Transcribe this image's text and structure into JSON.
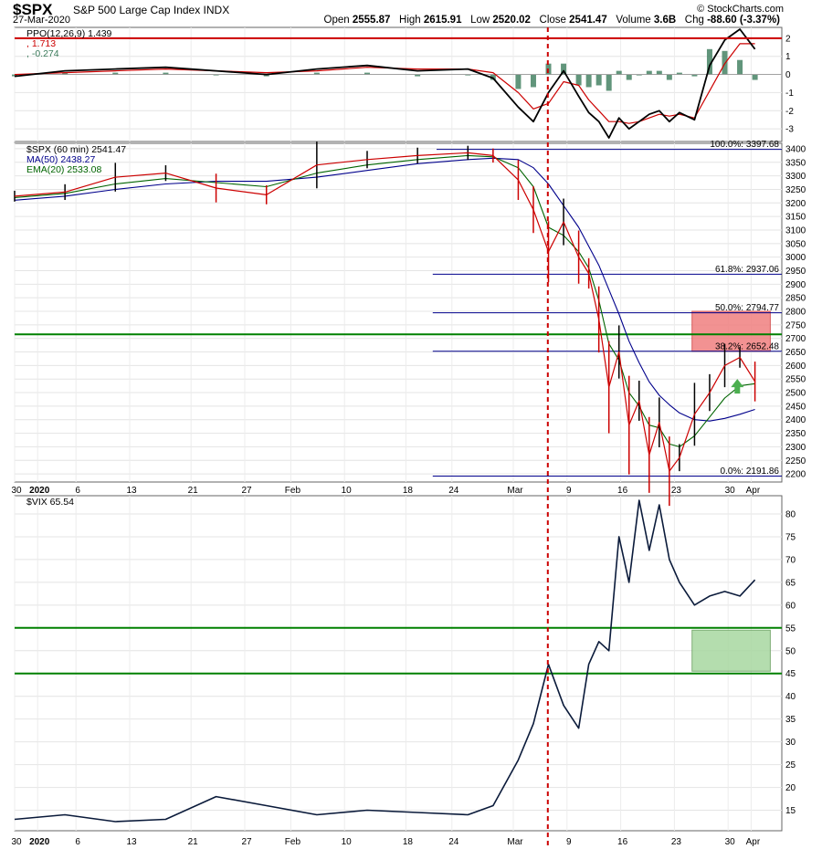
{
  "header": {
    "symbol": "$SPX",
    "description": "S&P 500 Large Cap Index  INDX",
    "date": "27-Mar-2020",
    "brand": "© StockCharts.com",
    "open_label": "Open",
    "open": "2555.87",
    "high_label": "High",
    "high": "2615.91",
    "low_label": "Low",
    "low": "2520.02",
    "close_label": "Close",
    "close": "2541.47",
    "volume_label": "Volume",
    "volume": "3.6B",
    "chg_label": "Chg",
    "chg": "-88.60 (-3.37%)"
  },
  "colors": {
    "price_up": "#000000",
    "price_down": "#cc0000",
    "ma50": "#00008b",
    "ema20": "#006400",
    "ppo": "#000000",
    "signal": "#cc0000",
    "histogram": "#3a7a5a",
    "vix": "#0a1a3a",
    "fib_line": "#00008b",
    "support_green": "#008000",
    "event_line": "#cc0000",
    "resistance_zone": "#f08080",
    "support_zone": "#a8d8a0"
  },
  "chart_data": [
    {
      "type": "line",
      "panel": "PPO",
      "legend": [
        {
          "text": "PPO(12,26,9) 1.439",
          "color": "#000000"
        },
        {
          "text": ", 1.713",
          "color": "#cc0000"
        },
        {
          "text": ", -0.274",
          "color": "#3a7a5a"
        }
      ],
      "ylim": [
        -3.7,
        2.6
      ],
      "yticks": [
        2,
        1,
        0,
        -1,
        -2,
        -3
      ],
      "reference_line": 2,
      "x": [
        0,
        10,
        20,
        30,
        40,
        50,
        60,
        70,
        80,
        90,
        95,
        100,
        103,
        106,
        109,
        112,
        114,
        116,
        118,
        120,
        122,
        124,
        126,
        128,
        130,
        132,
        135,
        138,
        141,
        144,
        147
      ],
      "series": [
        {
          "name": "PPO",
          "values": [
            -0.1,
            0.2,
            0.3,
            0.4,
            0.2,
            0.0,
            0.3,
            0.5,
            0.2,
            0.3,
            -0.2,
            -1.8,
            -2.6,
            -1.0,
            0.2,
            -1.2,
            -2.1,
            -2.6,
            -3.5,
            -2.4,
            -3.0,
            -2.6,
            -2.2,
            -2.0,
            -2.6,
            -2.1,
            -2.5,
            0.5,
            1.9,
            2.5,
            1.4
          ]
        },
        {
          "name": "Signal",
          "values": [
            0.0,
            0.1,
            0.2,
            0.3,
            0.2,
            0.1,
            0.2,
            0.4,
            0.3,
            0.3,
            0.1,
            -1.0,
            -1.9,
            -1.6,
            -0.4,
            -0.6,
            -1.4,
            -2.0,
            -2.6,
            -2.6,
            -2.7,
            -2.6,
            -2.4,
            -2.2,
            -2.3,
            -2.2,
            -2.4,
            -0.9,
            0.6,
            1.7,
            1.7
          ]
        },
        {
          "name": "Histogram",
          "values": [
            -0.1,
            0.1,
            0.1,
            0.1,
            0.0,
            -0.1,
            0.1,
            0.1,
            -0.1,
            0.0,
            -0.3,
            -0.8,
            -0.7,
            0.6,
            0.6,
            -0.6,
            -0.7,
            -0.6,
            -0.9,
            0.2,
            -0.3,
            0.0,
            0.2,
            0.2,
            -0.3,
            0.1,
            -0.1,
            1.4,
            1.3,
            0.8,
            -0.3
          ]
        }
      ]
    },
    {
      "type": "line",
      "panel": "SPX",
      "legend": [
        {
          "text": "$SPX (60 min) 2541.47",
          "color": "#000000"
        },
        {
          "text": "MA(50) 2438.27",
          "color": "#00008b"
        },
        {
          "text": "EMA(20) 2533.08",
          "color": "#006400"
        }
      ],
      "ylim": [
        2170,
        3420
      ],
      "yticks": [
        3400,
        3350,
        3300,
        3250,
        3200,
        3150,
        3100,
        3050,
        3000,
        2950,
        2900,
        2850,
        2800,
        2750,
        2700,
        2650,
        2600,
        2550,
        2500,
        2450,
        2400,
        2350,
        2300,
        2250,
        2200
      ],
      "x": [
        0,
        10,
        20,
        30,
        40,
        50,
        60,
        70,
        80,
        90,
        95,
        100,
        103,
        106,
        109,
        112,
        114,
        116,
        118,
        120,
        122,
        124,
        126,
        128,
        130,
        132,
        135,
        138,
        141,
        144,
        147
      ],
      "series": [
        {
          "name": "$SPX",
          "values": [
            3225,
            3240,
            3295,
            3310,
            3255,
            3230,
            3340,
            3360,
            3375,
            3385,
            3375,
            3285,
            3175,
            3020,
            3130,
            3000,
            2940,
            2770,
            2520,
            2650,
            2380,
            2470,
            2270,
            2390,
            2210,
            2260,
            2420,
            2500,
            2600,
            2630,
            2541
          ]
        },
        {
          "name": "MA(50)",
          "values": [
            3210,
            3225,
            3250,
            3270,
            3280,
            3280,
            3295,
            3320,
            3345,
            3360,
            3365,
            3360,
            3330,
            3270,
            3190,
            3110,
            3040,
            2970,
            2880,
            2790,
            2690,
            2610,
            2540,
            2490,
            2455,
            2425,
            2400,
            2395,
            2405,
            2420,
            2438
          ]
        },
        {
          "name": "EMA(20)",
          "values": [
            3220,
            3235,
            3270,
            3290,
            3275,
            3260,
            3310,
            3340,
            3360,
            3375,
            3370,
            3330,
            3260,
            3110,
            3080,
            3020,
            2960,
            2840,
            2680,
            2620,
            2500,
            2450,
            2380,
            2370,
            2310,
            2300,
            2340,
            2410,
            2480,
            2525,
            2533
          ]
        }
      ],
      "fibonacci": [
        {
          "label": "100.0%: 3397.68",
          "value": 3397.68
        },
        {
          "label": "61.8%: 2937.06",
          "value": 2937.06
        },
        {
          "label": "50.0%: 2794.77",
          "value": 2794.77
        },
        {
          "label": "38.2%: 2652.48",
          "value": 2652.48
        },
        {
          "label": "0.0%: 2191.86",
          "value": 2191.86
        }
      ],
      "support_line": 2715,
      "resistance_zone": [
        2652.48,
        2800
      ]
    },
    {
      "type": "line",
      "panel": "VIX",
      "legend": [
        {
          "text": "$VIX 65.54",
          "color": "#000000"
        }
      ],
      "ylim": [
        10.5,
        84
      ],
      "yticks": [
        80,
        75,
        70,
        65,
        60,
        55,
        50,
        45,
        40,
        35,
        30,
        25,
        20,
        15
      ],
      "x": [
        0,
        10,
        20,
        30,
        40,
        50,
        60,
        70,
        80,
        90,
        95,
        100,
        103,
        106,
        109,
        112,
        114,
        116,
        118,
        120,
        122,
        124,
        126,
        128,
        130,
        132,
        135,
        138,
        141,
        144,
        147
      ],
      "series": [
        {
          "name": "$VIX",
          "values": [
            13,
            14,
            12.5,
            13,
            18,
            16,
            14,
            15,
            14.5,
            14,
            16,
            26,
            34,
            47,
            38,
            33,
            47,
            52,
            50,
            75,
            65,
            83,
            72,
            82,
            70,
            65,
            60,
            62,
            63,
            62,
            65.54
          ]
        }
      ],
      "support_lines": [
        55,
        45
      ],
      "support_zone": [
        45.5,
        54.5
      ]
    }
  ],
  "x_axis": {
    "labels": [
      {
        "text": "30",
        "x": 0
      },
      {
        "text": "2020",
        "x": 3,
        "bold": true
      },
      {
        "text": "6",
        "x": 8
      },
      {
        "text": "13",
        "x": 15
      },
      {
        "text": "21",
        "x": 23
      },
      {
        "text": "27",
        "x": 30
      },
      {
        "text": "Feb",
        "x": 36
      },
      {
        "text": "10",
        "x": 43
      },
      {
        "text": "18",
        "x": 51
      },
      {
        "text": "24",
        "x": 57
      },
      {
        "text": "Mar",
        "x": 65
      },
      {
        "text": "9",
        "x": 72
      },
      {
        "text": "16",
        "x": 79
      },
      {
        "text": "23",
        "x": 86
      },
      {
        "text": "30",
        "x": 93
      },
      {
        "text": "Apr",
        "x": 96
      }
    ]
  }
}
